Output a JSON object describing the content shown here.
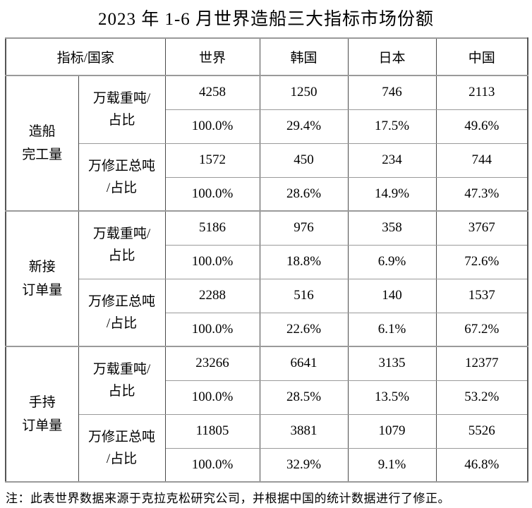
{
  "title": "2023 年 1-6 月世界造船三大指标市场份额",
  "colors": {
    "text": "#000000",
    "background": "#ffffff",
    "grid_horizontal": "#9a9a9a",
    "grid_vertical": "#4a4a4a"
  },
  "table": {
    "header": {
      "indicator_country": "指标/国家",
      "columns": [
        "世界",
        "韩国",
        "日本",
        "中国"
      ]
    },
    "groups": [
      {
        "name": "造船完工量",
        "name_lines": [
          "造船",
          "完工量"
        ],
        "metrics": [
          {
            "label": "万载重吨/占比",
            "label_lines": [
              "万载重吨/",
              "占比"
            ],
            "values": [
              "4258",
              "1250",
              "746",
              "2113"
            ],
            "shares": [
              "100.0%",
              "29.4%",
              "17.5%",
              "49.6%"
            ]
          },
          {
            "label": "万修正总吨/占比",
            "label_lines": [
              "万修正总吨",
              "/占比"
            ],
            "values": [
              "1572",
              "450",
              "234",
              "744"
            ],
            "shares": [
              "100.0%",
              "28.6%",
              "14.9%",
              "47.3%"
            ]
          }
        ]
      },
      {
        "name": "新接订单量",
        "name_lines": [
          "新接",
          "订单量"
        ],
        "metrics": [
          {
            "label": "万载重吨/占比",
            "label_lines": [
              "万载重吨/",
              "占比"
            ],
            "values": [
              "5186",
              "976",
              "358",
              "3767"
            ],
            "shares": [
              "100.0%",
              "18.8%",
              "6.9%",
              "72.6%"
            ]
          },
          {
            "label": "万修正总吨/占比",
            "label_lines": [
              "万修正总吨",
              "/占比"
            ],
            "values": [
              "2288",
              "516",
              "140",
              "1537"
            ],
            "shares": [
              "100.0%",
              "22.6%",
              "6.1%",
              "67.2%"
            ]
          }
        ]
      },
      {
        "name": "手持订单量",
        "name_lines": [
          "手持",
          "订单量"
        ],
        "metrics": [
          {
            "label": "万载重吨/占比",
            "label_lines": [
              "万载重吨/",
              "占比"
            ],
            "values": [
              "23266",
              "6641",
              "3135",
              "12377"
            ],
            "shares": [
              "100.0%",
              "28.5%",
              "13.5%",
              "53.2%"
            ]
          },
          {
            "label": "万修正总吨/占比",
            "label_lines": [
              "万修正总吨",
              "/占比"
            ],
            "values": [
              "11805",
              "3881",
              "1079",
              "5526"
            ],
            "shares": [
              "100.0%",
              "32.9%",
              "9.1%",
              "46.8%"
            ]
          }
        ]
      }
    ]
  },
  "note": "注：此表世界数据来源于克拉克松研究公司，并根据中国的统计数据进行了修正。"
}
